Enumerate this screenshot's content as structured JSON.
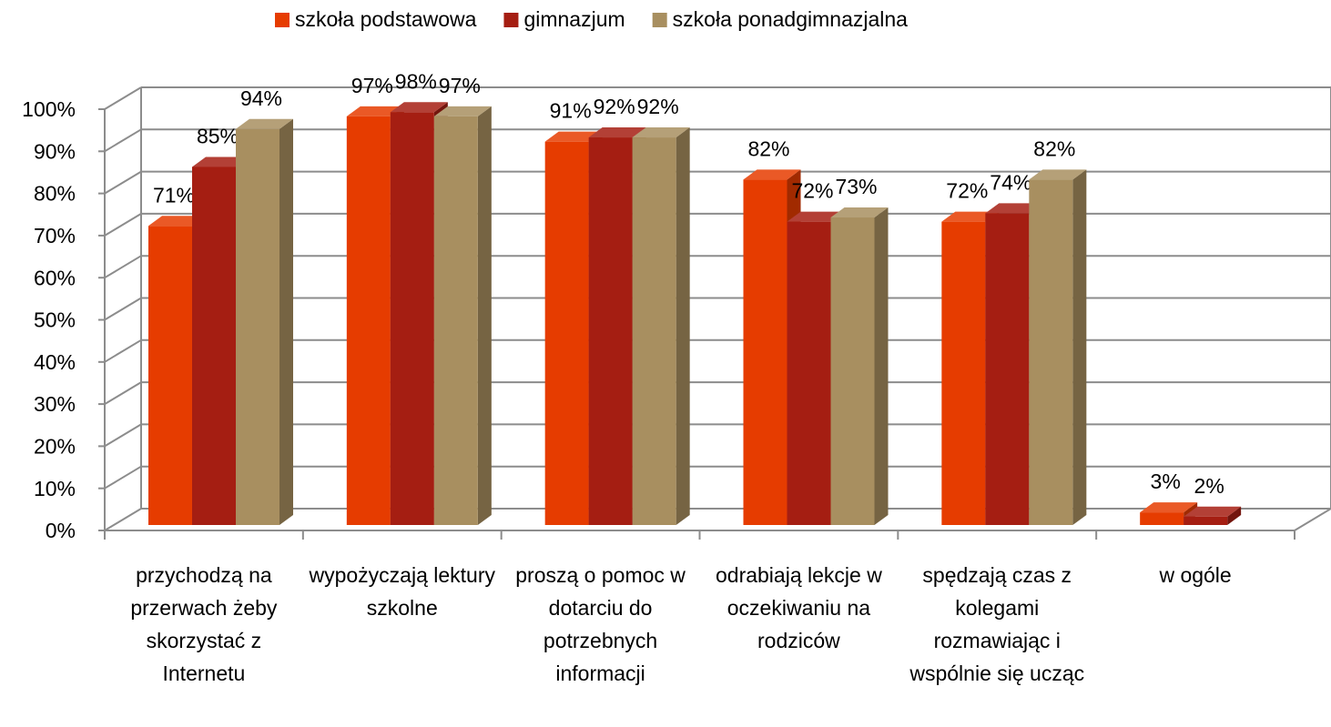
{
  "chart_data": {
    "type": "bar3d",
    "categories": [
      "przychodzą na przerwach żeby skorzystać z Internetu",
      "wypożyczają lektury szkolne",
      "proszą o pomoc w dotarciu do potrzebnych informacji",
      "odrabiają lekcje w oczekiwaniu na rodziców",
      "spędzają czas z kolegami rozmawiając i wspólnie się ucząc",
      "w ogóle"
    ],
    "series": [
      {
        "name": "szkoła podstawowa",
        "color": "#e63c00",
        "values": [
          71,
          97,
          91,
          82,
          72,
          3
        ],
        "value_labels": [
          "71%",
          "97%",
          "91%",
          "82%",
          "72%",
          "3%"
        ]
      },
      {
        "name": "gimnazjum",
        "color": "#a51e12",
        "values": [
          85,
          98,
          92,
          72,
          74,
          2
        ],
        "value_labels": [
          "85%",
          "98%",
          "92%",
          "72%",
          "74%",
          "2%"
        ]
      },
      {
        "name": "szkoła ponadgimnazjalna",
        "color": "#a88f60",
        "values": [
          94,
          97,
          92,
          73,
          82,
          null
        ],
        "value_labels": [
          "94%",
          "97%",
          "92%",
          "73%",
          "82%",
          null
        ]
      }
    ],
    "ylim": [
      0,
      100
    ],
    "yticks": [
      {
        "value": 0,
        "label": "0%"
      },
      {
        "value": 10,
        "label": "10%"
      },
      {
        "value": 20,
        "label": "20%"
      },
      {
        "value": 30,
        "label": "30%"
      },
      {
        "value": 40,
        "label": "40%"
      },
      {
        "value": 50,
        "label": "50%"
      },
      {
        "value": 60,
        "label": "60%"
      },
      {
        "value": 70,
        "label": "70%"
      },
      {
        "value": 80,
        "label": "80%"
      },
      {
        "value": 90,
        "label": "90%"
      },
      {
        "value": 100,
        "label": "100%"
      }
    ],
    "grid": true,
    "legend": "top"
  }
}
